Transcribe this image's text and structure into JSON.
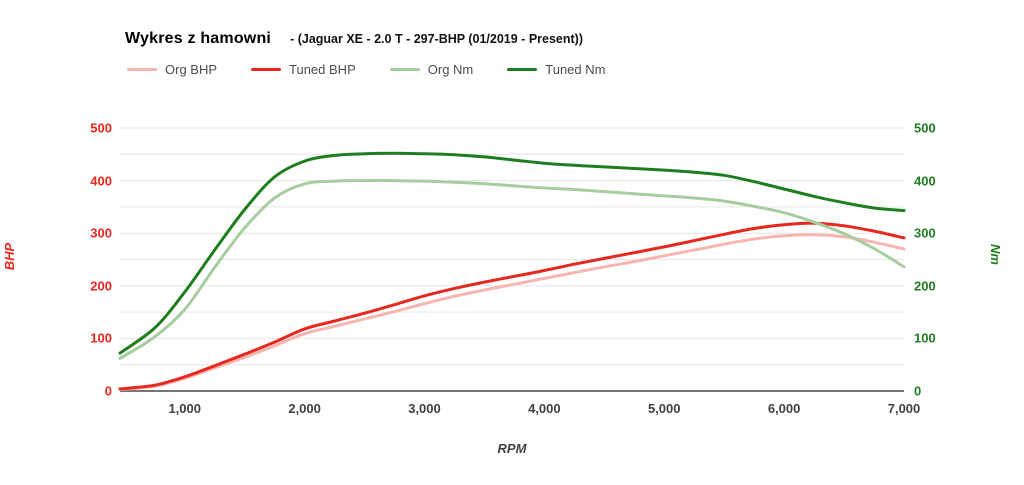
{
  "header": {
    "title": "Wykres z hamowni",
    "subtitle": "- (Jaguar XE - 2.0 T - 297-BHP (01/2019 - Present))"
  },
  "legend": {
    "items": [
      {
        "label": "Org BHP",
        "color": "#f6b5b1"
      },
      {
        "label": "Tuned BHP",
        "color": "#e8271e"
      },
      {
        "label": "Org Nm",
        "color": "#a6cd9d"
      },
      {
        "label": "Tuned Nm",
        "color": "#1e7d1e"
      }
    ]
  },
  "axes": {
    "left": {
      "title": "BHP",
      "color": "#e8271e",
      "ticks": [
        0,
        100,
        200,
        300,
        400,
        500
      ]
    },
    "right": {
      "title": "Nm",
      "color": "#1e7d1e",
      "ticks": [
        0,
        100,
        200,
        300,
        400,
        500
      ]
    },
    "x": {
      "title": "RPM",
      "tick_values": [
        1000,
        2000,
        3000,
        4000,
        5000,
        6000,
        7000
      ],
      "tick_labels": [
        "1,000",
        "2,000",
        "3,000",
        "4,000",
        "5,000",
        "6,000",
        "7,000"
      ]
    }
  },
  "style": {
    "gridline_color": "#e6e6e6",
    "baseline_color": "#757575",
    "background": "#ffffff"
  },
  "chart_data": {
    "type": "line",
    "title": "Wykres z hamowni - (Jaguar XE - 2.0 T - 297-BHP (01/2019 - Present))",
    "xlabel": "RPM",
    "ylabel_left": "BHP",
    "ylabel_right": "Nm",
    "x_range": [
      460,
      7000
    ],
    "y_range": [
      0,
      500
    ],
    "grid": "horizontal every 50",
    "legend_position": "top",
    "x": [
      460,
      750,
      1000,
      1250,
      1500,
      1750,
      2000,
      2250,
      2500,
      2750,
      3000,
      3250,
      3500,
      3750,
      4000,
      4250,
      4500,
      4750,
      5000,
      5250,
      5500,
      5750,
      6000,
      6250,
      6500,
      6750,
      7000
    ],
    "series": [
      {
        "name": "Org BHP",
        "axis": "left",
        "color": "#f6b5b1",
        "peak": 297,
        "values": [
          3,
          9,
          24,
          44,
          64,
          86,
          109,
          123,
          137,
          151,
          166,
          180,
          192,
          203,
          214,
          225,
          236,
          246,
          257,
          268,
          279,
          289,
          295,
          297,
          293,
          283,
          270
        ]
      },
      {
        "name": "Tuned BHP",
        "axis": "left",
        "color": "#e8271e",
        "peak": 319,
        "values": [
          4,
          11,
          27,
          48,
          70,
          93,
          118,
          133,
          148,
          164,
          181,
          195,
          207,
          218,
          229,
          241,
          252,
          263,
          274,
          286,
          298,
          309,
          316,
          319,
          314,
          304,
          291
        ]
      },
      {
        "name": "Org Nm",
        "axis": "right",
        "color": "#a6cd9d",
        "peak": 400,
        "values": [
          62,
          103,
          155,
          235,
          310,
          367,
          394,
          399,
          400,
          400,
          399,
          397,
          394,
          390,
          386,
          383,
          379,
          375,
          371,
          367,
          361,
          351,
          339,
          321,
          299,
          271,
          236
        ]
      },
      {
        "name": "Tuned Nm",
        "axis": "right",
        "color": "#1e7d1e",
        "peak": 452,
        "values": [
          72,
          120,
          188,
          268,
          345,
          407,
          437,
          448,
          451,
          452,
          451,
          449,
          445,
          439,
          433,
          429,
          426,
          423,
          420,
          416,
          410,
          398,
          384,
          370,
          358,
          348,
          343
        ]
      }
    ]
  }
}
